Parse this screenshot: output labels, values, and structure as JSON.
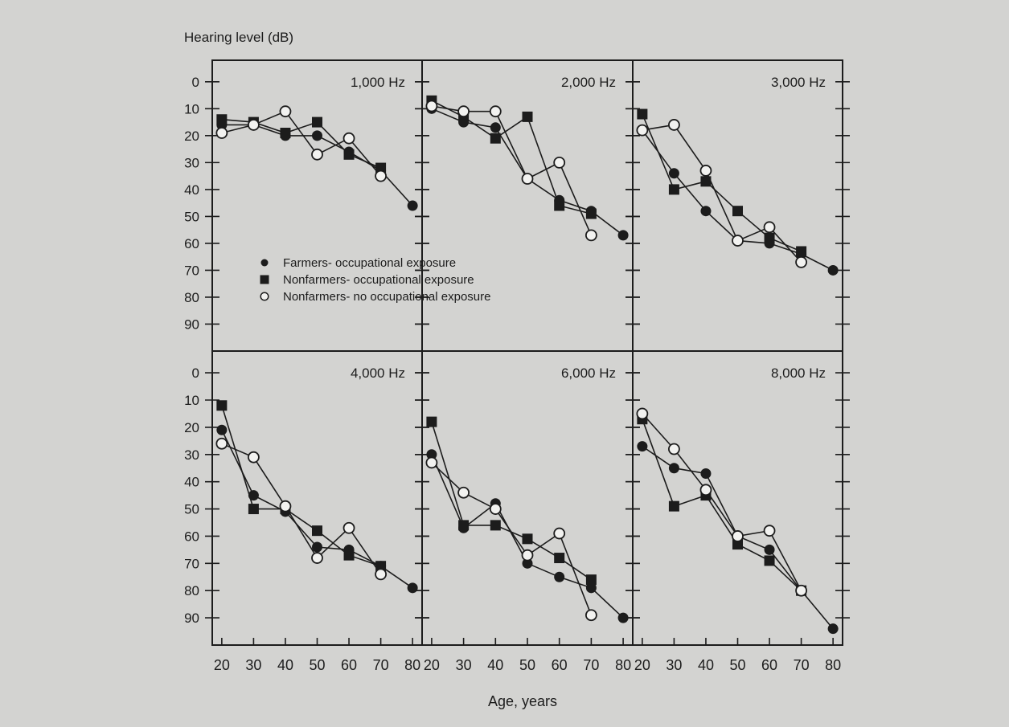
{
  "chart_data": {
    "type": "line",
    "ylabel": "Hearing level (dB)",
    "xlabel": "Age, years",
    "y_ticks": [
      "0",
      "10",
      "20",
      "30",
      "40",
      "50",
      "60",
      "70",
      "80",
      "90"
    ],
    "x_ticks": [
      "20",
      "30",
      "40",
      "50",
      "60",
      "70",
      "80"
    ],
    "ylim": [
      -8,
      100
    ],
    "xlim": [
      17,
      83
    ],
    "y_inverted": true,
    "grid": false,
    "legend": {
      "placement": "inside top-left panel, lower left",
      "entries": [
        {
          "marker": "filled-circle",
          "label": "Farmers- occupational exposure"
        },
        {
          "marker": "filled-square",
          "label": "Nonfarmers- occupational exposure"
        },
        {
          "marker": "open-circle",
          "label": "Nonfarmers- no occupational exposure"
        }
      ]
    },
    "panels": [
      {
        "title": "1,000 Hz",
        "series": [
          {
            "name": "Farmers- occupational exposure",
            "marker": "filled-circle",
            "x": [
              20,
              30,
              40,
              50,
              60,
              70,
              80
            ],
            "y": [
              16,
              16,
              20,
              20,
              26,
              33,
              46
            ]
          },
          {
            "name": "Nonfarmers- occupational exposure",
            "marker": "filled-square",
            "x": [
              20,
              30,
              40,
              50,
              60,
              70
            ],
            "y": [
              14,
              15,
              19,
              15,
              27,
              32
            ]
          },
          {
            "name": "Nonfarmers- no occupational exposure",
            "marker": "open-circle",
            "x": [
              20,
              30,
              40,
              50,
              60,
              70
            ],
            "y": [
              19,
              16,
              11,
              27,
              21,
              35
            ]
          }
        ]
      },
      {
        "title": "2,000 Hz",
        "series": [
          {
            "name": "Farmers- occupational exposure",
            "marker": "filled-circle",
            "x": [
              20,
              30,
              40,
              50,
              60,
              70,
              80
            ],
            "y": [
              10,
              15,
              17,
              36,
              44,
              48,
              57
            ]
          },
          {
            "name": "Nonfarmers- occupational exposure",
            "marker": "filled-square",
            "x": [
              20,
              30,
              40,
              50,
              60,
              70
            ],
            "y": [
              7,
              13,
              21,
              13,
              46,
              49
            ]
          },
          {
            "name": "Nonfarmers- no occupational exposure",
            "marker": "open-circle",
            "x": [
              20,
              30,
              40,
              50,
              60,
              70
            ],
            "y": [
              9,
              11,
              11,
              36,
              30,
              57
            ]
          }
        ]
      },
      {
        "title": "3,000 Hz",
        "series": [
          {
            "name": "Farmers- occupational exposure",
            "marker": "filled-circle",
            "x": [
              20,
              30,
              40,
              50,
              60,
              70,
              80
            ],
            "y": [
              18,
              34,
              48,
              59,
              60,
              64,
              70
            ]
          },
          {
            "name": "Nonfarmers- occupational exposure",
            "marker": "filled-square",
            "x": [
              20,
              30,
              40,
              50,
              60,
              70
            ],
            "y": [
              12,
              40,
              37,
              48,
              58,
              63
            ]
          },
          {
            "name": "Nonfarmers- no occupational exposure",
            "marker": "open-circle",
            "x": [
              20,
              30,
              40,
              50,
              60,
              70
            ],
            "y": [
              18,
              16,
              33,
              59,
              54,
              67
            ]
          }
        ]
      },
      {
        "title": "4,000 Hz",
        "series": [
          {
            "name": "Farmers- occupational exposure",
            "marker": "filled-circle",
            "x": [
              20,
              30,
              40,
              50,
              60,
              70,
              80
            ],
            "y": [
              21,
              45,
              51,
              64,
              65,
              71,
              79
            ]
          },
          {
            "name": "Nonfarmers- occupational exposure",
            "marker": "filled-square",
            "x": [
              20,
              30,
              40,
              50,
              60,
              70
            ],
            "y": [
              12,
              50,
              50,
              58,
              67,
              71
            ]
          },
          {
            "name": "Nonfarmers- no occupational exposure",
            "marker": "open-circle",
            "x": [
              20,
              30,
              40,
              50,
              60,
              70
            ],
            "y": [
              26,
              31,
              49,
              68,
              57,
              74
            ]
          }
        ]
      },
      {
        "title": "6,000 Hz",
        "series": [
          {
            "name": "Farmers- occupational exposure",
            "marker": "filled-circle",
            "x": [
              20,
              30,
              40,
              50,
              60,
              70,
              80
            ],
            "y": [
              30,
              57,
              48,
              70,
              75,
              79,
              90
            ]
          },
          {
            "name": "Nonfarmers- occupational exposure",
            "marker": "filled-square",
            "x": [
              20,
              30,
              40,
              50,
              60,
              70
            ],
            "y": [
              18,
              56,
              56,
              61,
              68,
              76
            ]
          },
          {
            "name": "Nonfarmers- no occupational exposure",
            "marker": "open-circle",
            "x": [
              20,
              30,
              40,
              50,
              60,
              70
            ],
            "y": [
              33,
              44,
              50,
              67,
              59,
              89
            ]
          }
        ]
      },
      {
        "title": "8,000 Hz",
        "series": [
          {
            "name": "Farmers- occupational exposure",
            "marker": "filled-circle",
            "x": [
              20,
              30,
              40,
              50,
              60,
              70,
              80
            ],
            "y": [
              27,
              35,
              37,
              60,
              65,
              80,
              94
            ]
          },
          {
            "name": "Nonfarmers- occupational exposure",
            "marker": "filled-square",
            "x": [
              20,
              30,
              40,
              50,
              60,
              70
            ],
            "y": [
              17,
              49,
              45,
              63,
              69,
              80
            ]
          },
          {
            "name": "Nonfarmers- no occupational exposure",
            "marker": "open-circle",
            "x": [
              20,
              30,
              40,
              50,
              60,
              70
            ],
            "y": [
              15,
              28,
              43,
              60,
              58,
              80
            ]
          }
        ]
      }
    ]
  }
}
